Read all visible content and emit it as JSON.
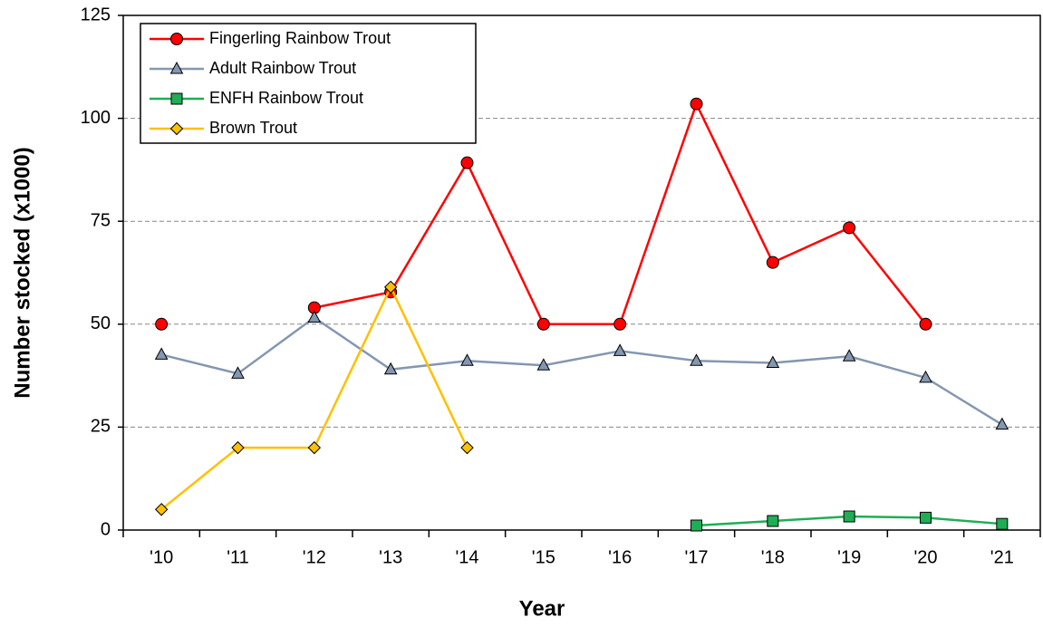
{
  "chart_data": {
    "type": "line",
    "x_label": "Year",
    "y_label": "Number stocked (x1000)",
    "categories": [
      "'10",
      "'11",
      "'12",
      "'13",
      "'14",
      "'15",
      "'16",
      "'17",
      "'18",
      "'19",
      "'20",
      "'21"
    ],
    "series": [
      {
        "name": "Fingerling Rainbow Trout",
        "color": "#ff0000",
        "marker": "circle",
        "values": [
          50,
          null,
          54,
          57.8,
          89.2,
          50,
          50,
          103.5,
          65,
          73.4,
          50,
          null
        ]
      },
      {
        "name": "Adult Rainbow Trout",
        "color": "#8497b0",
        "marker": "triangle",
        "values": [
          42.6,
          38,
          51.6,
          39,
          41.1,
          40,
          43.5,
          41.1,
          40.6,
          42.2,
          37,
          25.6
        ]
      },
      {
        "name": "ENFH Rainbow Trout",
        "color": "#1fae55",
        "marker": "square",
        "values": [
          null,
          null,
          null,
          null,
          null,
          null,
          null,
          1.1,
          2.2,
          3.3,
          3,
          1.5
        ]
      },
      {
        "name": "Brown Trout",
        "color": "#ffc000",
        "marker": "diamond",
        "values": [
          5,
          20,
          20,
          59,
          20,
          null,
          null,
          null,
          null,
          null,
          null,
          null
        ]
      }
    ],
    "ylim": [
      0,
      125
    ],
    "yticks": [
      0,
      25,
      50,
      75,
      100,
      125
    ],
    "grid": true,
    "legend": "top-left"
  }
}
